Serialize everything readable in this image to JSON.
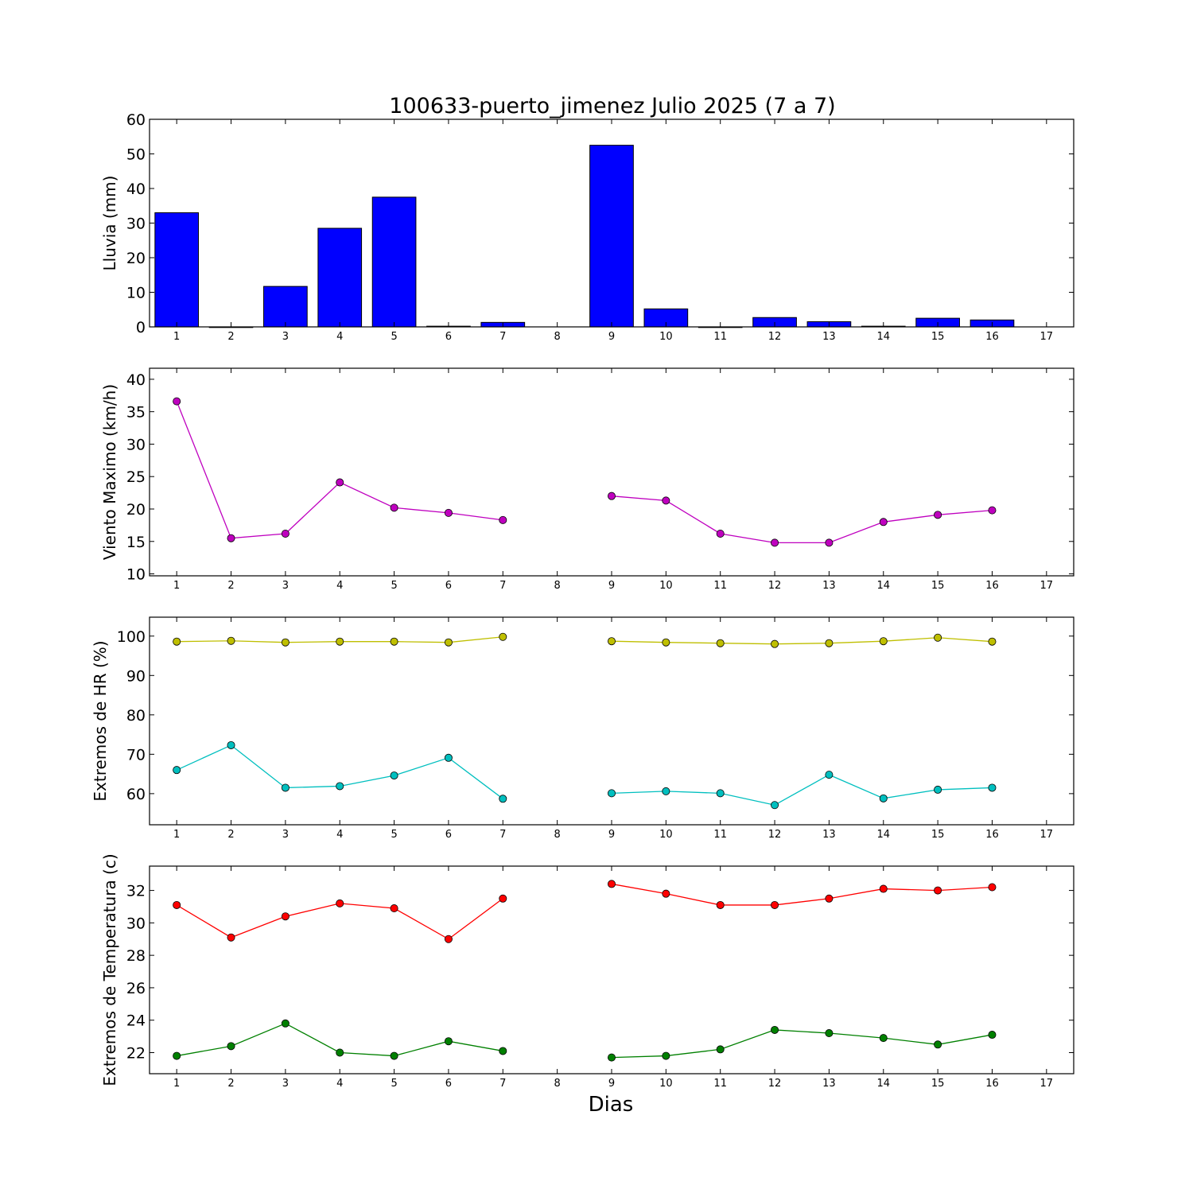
{
  "figure": {
    "title": "100633-puerto_jimenez Julio 2025  (7 a 7)",
    "xlabel": "Dias"
  },
  "chart_data": [
    {
      "type": "bar",
      "title": "100633-puerto_jimenez Julio 2025  (7 a 7)",
      "xlabel": "",
      "ylabel": "Lluvia (mm)",
      "categories": [
        "1",
        "2",
        "3",
        "4",
        "5",
        "6",
        "7",
        "8",
        "9",
        "10",
        "11",
        "12",
        "13",
        "14",
        "15",
        "16",
        "17"
      ],
      "values": [
        33.0,
        0.0,
        11.7,
        28.5,
        37.5,
        0.2,
        1.3,
        null,
        52.5,
        5.2,
        0.0,
        2.7,
        1.5,
        0.2,
        2.5,
        2.0,
        null
      ],
      "xlim": [
        0.5,
        17.5
      ],
      "ylim": [
        0,
        60
      ],
      "yticks": [
        0,
        10,
        20,
        30,
        40,
        50,
        60
      ],
      "color": "#0000ff",
      "grid": false,
      "legend": "none"
    },
    {
      "type": "line",
      "ylabel": "Viento Maximo (km/h)",
      "x": [
        1,
        2,
        3,
        4,
        5,
        6,
        7,
        8,
        9,
        10,
        11,
        12,
        13,
        14,
        15,
        16
      ],
      "series": [
        {
          "color": "#bf00bf",
          "values": [
            36.6,
            15.5,
            16.2,
            24.1,
            20.2,
            19.4,
            18.3,
            null,
            22.0,
            21.3,
            16.2,
            14.8,
            14.8,
            18.0,
            19.1,
            19.8
          ]
        }
      ],
      "xticks": [
        "1",
        "2",
        "3",
        "4",
        "5",
        "6",
        "7",
        "8",
        "9",
        "10",
        "11",
        "12",
        "13",
        "14",
        "15",
        "16",
        "17"
      ],
      "xlim": [
        0.5,
        17.5
      ],
      "ylim": [
        9.7,
        41.7
      ],
      "yticks": [
        10,
        15,
        20,
        25,
        30,
        35,
        40
      ],
      "grid": false,
      "legend": "none"
    },
    {
      "type": "line",
      "ylabel": "Extremos de HR (%)",
      "x": [
        1,
        2,
        3,
        4,
        5,
        6,
        7,
        8,
        9,
        10,
        11,
        12,
        13,
        14,
        15,
        16
      ],
      "series": [
        {
          "color": "#bfbf00",
          "values": [
            98.6,
            98.8,
            98.4,
            98.6,
            98.6,
            98.4,
            99.8,
            null,
            98.7,
            98.4,
            98.2,
            98.0,
            98.2,
            98.7,
            99.6,
            98.6
          ]
        },
        {
          "color": "#00bfbf",
          "values": [
            66.0,
            72.3,
            61.5,
            61.9,
            64.6,
            69.1,
            58.7,
            null,
            60.1,
            60.6,
            60.1,
            57.1,
            64.8,
            58.8,
            61.0,
            61.5
          ]
        }
      ],
      "xticks": [
        "1",
        "2",
        "3",
        "4",
        "5",
        "6",
        "7",
        "8",
        "9",
        "10",
        "11",
        "12",
        "13",
        "14",
        "15",
        "16",
        "17"
      ],
      "xlim": [
        0.5,
        17.5
      ],
      "ylim": [
        52.1,
        104.8
      ],
      "yticks": [
        60,
        70,
        80,
        90,
        100
      ],
      "grid": false,
      "legend": "none"
    },
    {
      "type": "line",
      "ylabel": "Extremos de Temperatura (c)",
      "x": [
        1,
        2,
        3,
        4,
        5,
        6,
        7,
        8,
        9,
        10,
        11,
        12,
        13,
        14,
        15,
        16
      ],
      "series": [
        {
          "color": "#ff0000",
          "values": [
            31.1,
            29.1,
            30.4,
            31.2,
            30.9,
            29.0,
            31.5,
            null,
            32.4,
            31.8,
            31.1,
            31.1,
            31.5,
            32.1,
            32.0,
            32.2
          ]
        },
        {
          "color": "#008000",
          "values": [
            21.8,
            22.4,
            23.8,
            22.0,
            21.8,
            22.7,
            22.1,
            null,
            21.7,
            21.8,
            22.2,
            23.4,
            23.2,
            22.9,
            22.5,
            23.1
          ]
        }
      ],
      "xticks": [
        "1",
        "2",
        "3",
        "4",
        "5",
        "6",
        "7",
        "8",
        "9",
        "10",
        "11",
        "12",
        "13",
        "14",
        "15",
        "16",
        "17"
      ],
      "xlim": [
        0.5,
        17.5
      ],
      "ylim": [
        20.7,
        33.5
      ],
      "yticks": [
        22,
        24,
        26,
        28,
        30,
        32
      ],
      "grid": false,
      "legend": "none"
    }
  ]
}
